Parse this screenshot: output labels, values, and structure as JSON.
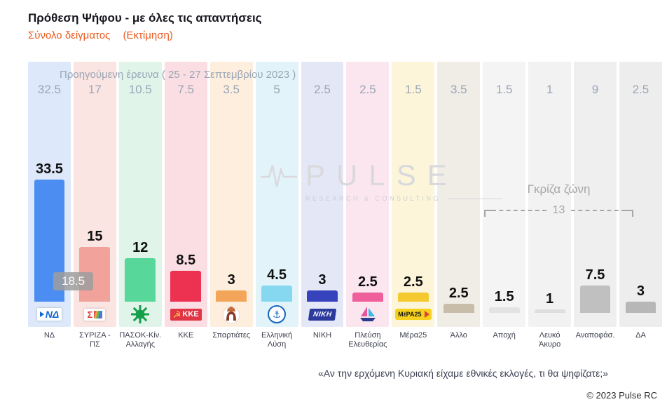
{
  "header": {
    "title": "Πρόθεση Ψήφου - με όλες τις απαντήσεις",
    "subtitle_sample": "Σύνολο δείγματος",
    "subtitle_estimate": "(Εκτίμηση)"
  },
  "chart_data": {
    "type": "bar",
    "title": "Πρόθεση Ψήφου - με όλες τις απαντήσεις",
    "categories": [
      "ΝΔ",
      "ΣΥΡΙΖΑ - ΠΣ",
      "ΠΑΣΟΚ-Κίν. Αλλαγής",
      "ΚΚΕ",
      "Σπαρτιάτες",
      "Ελληνική Λύση",
      "ΝΙΚΗ",
      "Πλεύση Ελευθερίας",
      "Μέρα25",
      "Άλλο",
      "Αποχή",
      "Λευκό Άκυρο",
      "Αναποφάσ.",
      "ΔΑ"
    ],
    "keys": [
      "nd",
      "syriza-ps",
      "pasok-kinal",
      "kke",
      "spartiates",
      "elliniki-lysi",
      "niki",
      "plefsi-eleftherias",
      "mera25",
      "allo",
      "apochi",
      "lefko-akyro",
      "anapofasistoi",
      "da"
    ],
    "series": [
      {
        "name": "Εκτίμηση",
        "values": [
          33.5,
          15,
          12,
          8.5,
          3,
          4.5,
          3,
          2.5,
          2.5,
          2.5,
          1.5,
          1,
          7.5,
          3
        ]
      },
      {
        "name": "Προηγούμενη έρευνα ( 25 - 27 Σεπτεμβρίου 2023 )",
        "values": [
          32.5,
          17,
          10.5,
          7.5,
          3.5,
          5,
          2.5,
          2.5,
          1.5,
          3.5,
          1.5,
          1,
          9,
          2.5
        ]
      }
    ],
    "previous_survey_label": "Προηγούμενη έρευνα  ( 25 - 27 Σεπτεμβρίου 2023 )",
    "ylim": [
      0,
      36
    ],
    "grid": false,
    "legend_position": "none",
    "bar_colors": [
      "#4c8df2",
      "#f0a29b",
      "#57d89a",
      "#ed3150",
      "#f3a659",
      "#85d8ef",
      "#3742bd",
      "#ef5f9b",
      "#f5c930",
      "#c8bda9",
      "#e3e3e3",
      "#dedede",
      "#c0c0c0",
      "#b7b7b7"
    ],
    "column_bg_colors": [
      "#dde9fa",
      "#fbe5e2",
      "#e0f4ea",
      "#fadee3",
      "#fdeede",
      "#e2f3fa",
      "#e4e7f6",
      "#fbe6ef",
      "#fcf5d9",
      "#efede6",
      "#f4f4f4",
      "#f2f2f2",
      "#efefef",
      "#ededed"
    ],
    "logos": [
      "nd-logo",
      "syriza-logo",
      "pasok-logo",
      "kke-logo",
      "spartiates-logo",
      "elliniki-lysi-logo",
      "niki-logo",
      "plefsi-logo",
      "mera25-logo",
      null,
      null,
      null,
      null,
      null
    ],
    "logo_texts": {
      "nd": "ΝΔ",
      "syriza": "Σ",
      "kke": "ΚΚΕ",
      "niki": "ΝΙΚΗ",
      "mera25": "ΜέΡΑ25"
    },
    "annotations": {
      "lead_value": "18.5",
      "gray_zone_label": "Γκρίζα ζώνη",
      "gray_zone_value": "13"
    }
  },
  "watermark": {
    "brand": "PULSE",
    "tagline": "RESEARCH & CONSULTING"
  },
  "footer": {
    "question": "«Αν την ερχόμενη Κυριακή είχαμε εθνικές εκλογές, τι θα ψηφίζατε;»",
    "copyright": "© 2023 Pulse RC"
  }
}
